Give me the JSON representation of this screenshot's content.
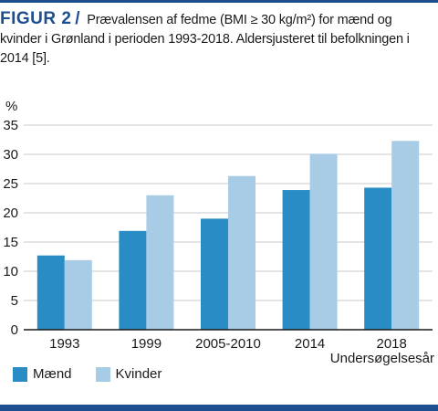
{
  "caption": {
    "figure_label": "FIGUR 2",
    "slash": "/",
    "text": "Prævalensen af fedme (BMI ≥ 30 kg/m²) for mænd og kvinder i Grønland i perioden 1993-2018. Aldersjusteret til befolkningen i 2014 [5]."
  },
  "colors": {
    "maend": "#2a8cc4",
    "kvinder": "#a8cbe6",
    "rule": "#1d4e8f"
  },
  "chart_data": {
    "type": "bar",
    "title": "",
    "ylabel": "%",
    "xlabel": "Undersøgelsesår",
    "categories": [
      "1993",
      "1999",
      "2005-2010",
      "2014",
      "2018"
    ],
    "series": [
      {
        "name": "Mænd",
        "values": [
          12.7,
          16.9,
          19.0,
          23.9,
          24.3
        ]
      },
      {
        "name": "Kvinder",
        "values": [
          11.9,
          23.0,
          26.3,
          30.1,
          32.3
        ]
      }
    ],
    "ylim": [
      0,
      35
    ],
    "yticks": [
      0,
      5,
      10,
      15,
      20,
      25,
      30,
      35
    ],
    "grid": true,
    "legend_position": "bottom-left"
  }
}
